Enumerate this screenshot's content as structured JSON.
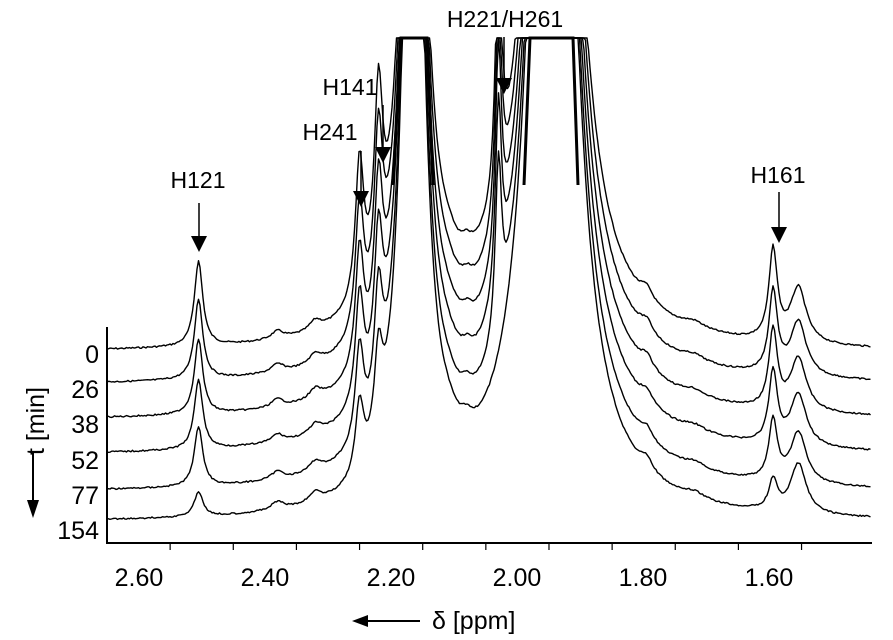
{
  "chart_data": {
    "type": "line",
    "title": "",
    "xlabel": "δ [ppm]",
    "ylabel": "t [min]",
    "x_direction": "decreasing (left to right)",
    "xlim": [
      2.7,
      1.49
    ],
    "x_ticks": [
      "2.60",
      "2.40",
      "2.20",
      "2.00",
      "1.80",
      "1.60"
    ],
    "grid": false,
    "legend": "none (traces labelled by time on left)",
    "series": [
      {
        "name": "0",
        "label": "0 min"
      },
      {
        "name": "26",
        "label": "26 min"
      },
      {
        "name": "38",
        "label": "38 min"
      },
      {
        "name": "52",
        "label": "52 min"
      },
      {
        "name": "77",
        "label": "77 min"
      },
      {
        "name": "154",
        "label": "154 min"
      }
    ],
    "peaks": [
      {
        "label": "H121",
        "ppm": 2.555,
        "heights_by_time": [
          85,
          80,
          75,
          70,
          60,
          25
        ]
      },
      {
        "label": "H241",
        "ppm": 2.3,
        "heights_by_time": [
          140,
          130,
          120,
          110,
          95,
          70
        ]
      },
      {
        "label": "H141",
        "ppm": 2.27,
        "heights_by_time": [
          175,
          165,
          150,
          135,
          115,
          85
        ]
      },
      {
        "label": "H221/H261",
        "ppm": 2.08,
        "heights_by_time": [
          240,
          225,
          210,
          190,
          170,
          0
        ]
      },
      {
        "label": "H161",
        "ppm": 1.645,
        "heights_by_time": [
          90,
          82,
          78,
          72,
          60,
          30
        ]
      }
    ],
    "solvent_peaks_clipped_ppm": [
      2.22,
      2.0
    ],
    "annotations": [
      "H121",
      "H241",
      "H141",
      "H221/H261",
      "H161"
    ]
  },
  "axis": {
    "tick_labels": [
      "2.60",
      "2.40",
      "2.20",
      "2.00",
      "1.80",
      "1.60"
    ],
    "x_title": "δ [ppm]",
    "y_title": "t [min]",
    "time_labels": [
      "0",
      "26",
      "38",
      "52",
      "77",
      "154"
    ]
  },
  "annotations": {
    "h121": "H121",
    "h241": "H241",
    "h141": "H141",
    "h221_h261": "H221/H261",
    "h161": "H161"
  },
  "colors": {
    "line": "#000000",
    "background": "#ffffff"
  }
}
